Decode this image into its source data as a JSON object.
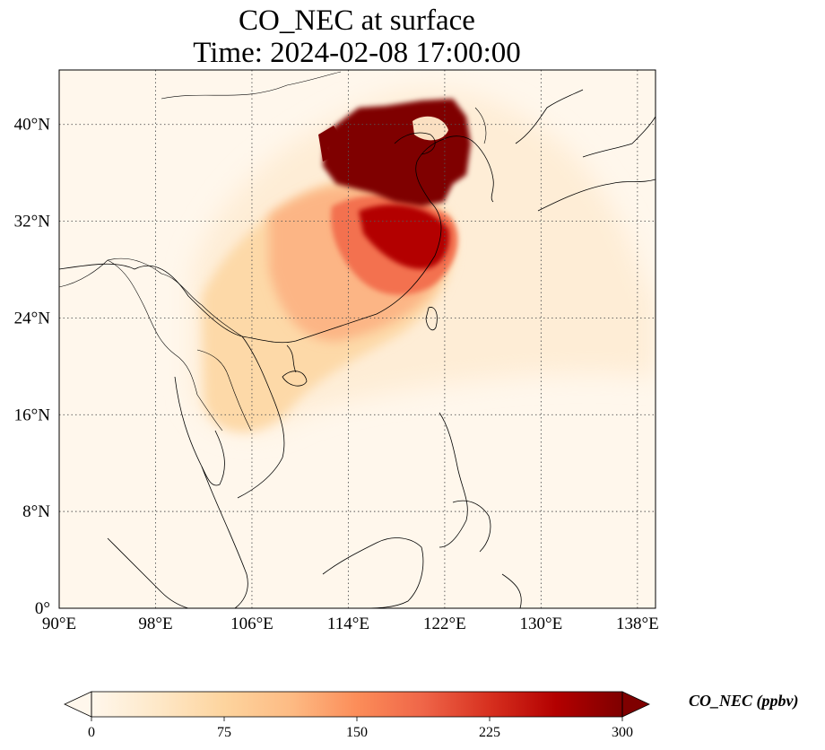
{
  "title": {
    "line1": "CO_NEC at surface",
    "line2": "Time: 2024-02-08 17:00:00"
  },
  "map": {
    "projection": "PlateCarree",
    "extent_lon": [
      90,
      139.5
    ],
    "extent_lat": [
      0,
      44.5
    ],
    "gridlines": "dotted",
    "lon_ticks": [
      90,
      98,
      106,
      114,
      122,
      130,
      138
    ],
    "lat_ticks": [
      0,
      8,
      16,
      24,
      32,
      40
    ],
    "lon_labels": [
      "90°E",
      "98°E",
      "106°E",
      "114°E",
      "122°E",
      "130°E",
      "138°E"
    ],
    "lat_labels": [
      "0°",
      "8°N",
      "16°N",
      "24°N",
      "32°N",
      "40°N"
    ],
    "field": "CO_NEC",
    "field_description": "surface CO concentration; maximum plume over North China Plain / Bohai region, secondary maximum over Yangtze River Delta, moderate values over South China and northern Indochina"
  },
  "colorbar": {
    "label": "CO_NEC (ppbv)",
    "colormap": [
      "#fff7ec",
      "#fee8c8",
      "#fdd49e",
      "#fdbb84",
      "#fc8d59",
      "#ef6548",
      "#d7301f",
      "#b30000",
      "#7f0000"
    ],
    "min": 0,
    "max": 300,
    "extend": "both",
    "ticks": [
      0,
      75,
      150,
      225,
      300
    ],
    "tick_labels": [
      "0",
      "75",
      "150",
      "225",
      "300"
    ]
  }
}
